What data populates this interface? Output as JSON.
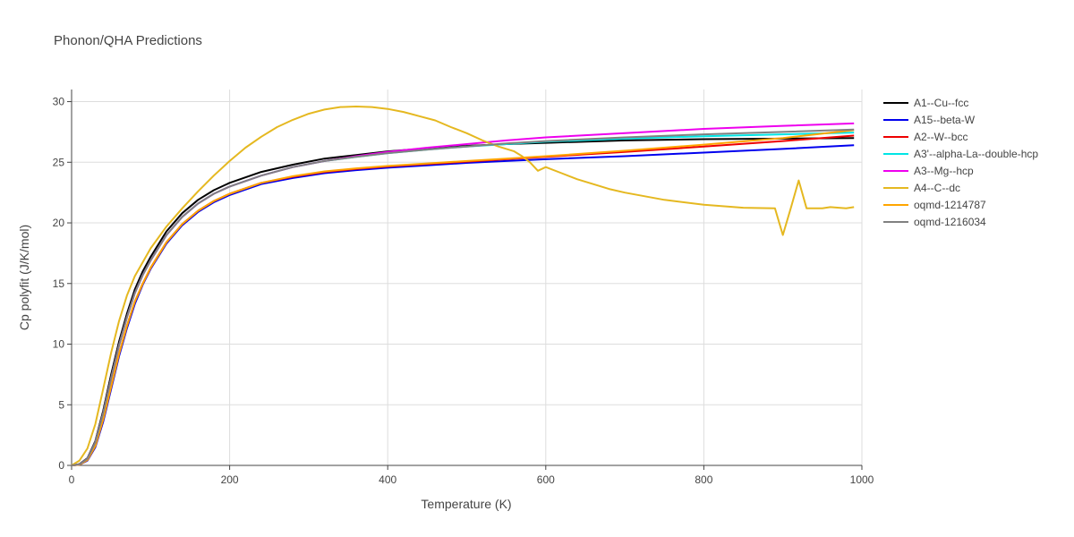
{
  "chart_data": {
    "type": "line",
    "title": "Phonon/QHA Predictions",
    "xlabel": "Temperature (K)",
    "ylabel": "Cp polyfit (J/K/mol)",
    "xlim": [
      0,
      1000
    ],
    "ylim": [
      0,
      31
    ],
    "xticks": [
      0,
      200,
      400,
      600,
      800,
      1000
    ],
    "yticks": [
      0,
      5,
      10,
      15,
      20,
      25,
      30
    ],
    "grid": true,
    "legend_position": "right",
    "series": [
      {
        "name": "A1--Cu--fcc",
        "color": "#000000",
        "x": [
          0,
          10,
          20,
          30,
          40,
          50,
          60,
          70,
          80,
          90,
          100,
          120,
          140,
          160,
          180,
          200,
          240,
          280,
          320,
          360,
          400,
          450,
          500,
          550,
          600,
          700,
          800,
          900,
          990
        ],
        "y": [
          0,
          0.1,
          0.6,
          2.0,
          4.5,
          7.5,
          10.2,
          12.5,
          14.5,
          16.0,
          17.2,
          19.3,
          20.8,
          21.9,
          22.7,
          23.3,
          24.2,
          24.8,
          25.3,
          25.6,
          25.9,
          26.15,
          26.35,
          26.5,
          26.6,
          26.8,
          26.9,
          26.95,
          27.0
        ]
      },
      {
        "name": "A15--beta-W",
        "color": "#0000ee",
        "x": [
          0,
          10,
          20,
          30,
          40,
          50,
          60,
          70,
          80,
          90,
          100,
          120,
          140,
          160,
          180,
          200,
          240,
          280,
          320,
          360,
          400,
          450,
          500,
          550,
          600,
          700,
          800,
          900,
          990
        ],
        "y": [
          0,
          0.05,
          0.4,
          1.5,
          3.6,
          6.3,
          9.0,
          11.3,
          13.3,
          14.9,
          16.2,
          18.3,
          19.8,
          20.9,
          21.7,
          22.3,
          23.2,
          23.7,
          24.1,
          24.35,
          24.55,
          24.75,
          24.95,
          25.1,
          25.25,
          25.5,
          25.8,
          26.1,
          26.4
        ]
      },
      {
        "name": "A2--W--bcc",
        "color": "#ee0000",
        "x": [
          0,
          10,
          20,
          30,
          40,
          50,
          60,
          70,
          80,
          90,
          100,
          120,
          140,
          160,
          180,
          200,
          240,
          280,
          320,
          360,
          400,
          450,
          500,
          550,
          600,
          700,
          800,
          900,
          990
        ],
        "y": [
          0,
          0.05,
          0.45,
          1.6,
          3.8,
          6.5,
          9.2,
          11.5,
          13.5,
          15.0,
          16.3,
          18.4,
          19.9,
          21.0,
          21.8,
          22.4,
          23.3,
          23.8,
          24.2,
          24.45,
          24.65,
          24.85,
          25.05,
          25.25,
          25.45,
          25.85,
          26.3,
          26.75,
          27.2
        ]
      },
      {
        "name": "A3'--alpha-La--double-hcp",
        "color": "#00e5e5",
        "x": [
          0,
          10,
          20,
          30,
          40,
          50,
          60,
          70,
          80,
          90,
          100,
          120,
          140,
          160,
          180,
          200,
          240,
          280,
          320,
          360,
          400,
          450,
          500,
          550,
          600,
          700,
          800,
          900,
          990
        ],
        "y": [
          0,
          0.08,
          0.55,
          1.9,
          4.3,
          7.2,
          9.9,
          12.2,
          14.2,
          15.7,
          16.9,
          19.0,
          20.5,
          21.6,
          22.4,
          23.0,
          23.9,
          24.6,
          25.1,
          25.45,
          25.75,
          26.05,
          26.3,
          26.5,
          26.7,
          26.95,
          27.15,
          27.3,
          27.45
        ]
      },
      {
        "name": "A3--Mg--hcp",
        "color": "#ee00ee",
        "x": [
          0,
          10,
          20,
          30,
          40,
          50,
          60,
          70,
          80,
          90,
          100,
          120,
          140,
          160,
          180,
          200,
          240,
          280,
          320,
          360,
          400,
          450,
          500,
          550,
          600,
          700,
          800,
          900,
          990
        ],
        "y": [
          0,
          0.08,
          0.55,
          1.9,
          4.3,
          7.2,
          9.9,
          12.2,
          14.2,
          15.7,
          16.9,
          19.0,
          20.5,
          21.6,
          22.4,
          23.0,
          23.9,
          24.6,
          25.1,
          25.5,
          25.85,
          26.2,
          26.5,
          26.8,
          27.05,
          27.4,
          27.75,
          28.0,
          28.2
        ]
      },
      {
        "name": "A4--C--dc",
        "color": "#e5b820",
        "x": [
          0,
          10,
          20,
          30,
          40,
          50,
          60,
          70,
          80,
          100,
          120,
          140,
          160,
          180,
          200,
          220,
          240,
          260,
          280,
          300,
          320,
          340,
          360,
          380,
          400,
          420,
          440,
          460,
          480,
          500,
          520,
          540,
          560,
          570,
          580,
          590,
          600,
          620,
          640,
          660,
          680,
          700,
          750,
          800,
          850,
          890,
          900,
          910,
          920,
          930,
          950,
          960,
          980,
          990
        ],
        "y": [
          0,
          0.4,
          1.4,
          3.4,
          6.3,
          9.3,
          11.9,
          14.0,
          15.6,
          17.9,
          19.7,
          21.2,
          22.6,
          23.9,
          25.1,
          26.2,
          27.1,
          27.9,
          28.5,
          29.0,
          29.35,
          29.55,
          29.6,
          29.55,
          29.4,
          29.15,
          28.8,
          28.45,
          27.9,
          27.4,
          26.8,
          26.3,
          25.9,
          25.5,
          25.0,
          24.3,
          24.6,
          24.1,
          23.6,
          23.2,
          22.8,
          22.5,
          21.9,
          21.5,
          21.25,
          21.2,
          19.0,
          21.2,
          23.5,
          21.2,
          21.2,
          21.3,
          21.2,
          21.3
        ]
      },
      {
        "name": "oqmd-1214787",
        "color": "#ffa500",
        "x": [
          0,
          10,
          20,
          30,
          40,
          50,
          60,
          70,
          80,
          90,
          100,
          120,
          140,
          160,
          180,
          200,
          240,
          280,
          320,
          360,
          400,
          450,
          500,
          550,
          600,
          700,
          800,
          900,
          990
        ],
        "y": [
          0,
          0.05,
          0.45,
          1.6,
          3.8,
          6.5,
          9.2,
          11.5,
          13.5,
          15.0,
          16.3,
          18.4,
          19.9,
          21.0,
          21.8,
          22.4,
          23.3,
          23.85,
          24.25,
          24.5,
          24.7,
          24.9,
          25.1,
          25.3,
          25.5,
          25.95,
          26.45,
          27.0,
          27.65
        ]
      },
      {
        "name": "oqmd-1216034",
        "color": "#808080",
        "x": [
          0,
          10,
          20,
          30,
          40,
          50,
          60,
          70,
          80,
          90,
          100,
          120,
          140,
          160,
          180,
          200,
          240,
          280,
          320,
          360,
          400,
          450,
          500,
          550,
          600,
          700,
          800,
          900,
          990
        ],
        "y": [
          0,
          0.08,
          0.55,
          1.9,
          4.3,
          7.2,
          9.9,
          12.2,
          14.2,
          15.7,
          16.9,
          19.0,
          20.5,
          21.6,
          22.4,
          23.0,
          23.9,
          24.6,
          25.1,
          25.45,
          25.75,
          26.05,
          26.3,
          26.55,
          26.75,
          27.05,
          27.3,
          27.5,
          27.7
        ]
      }
    ]
  }
}
